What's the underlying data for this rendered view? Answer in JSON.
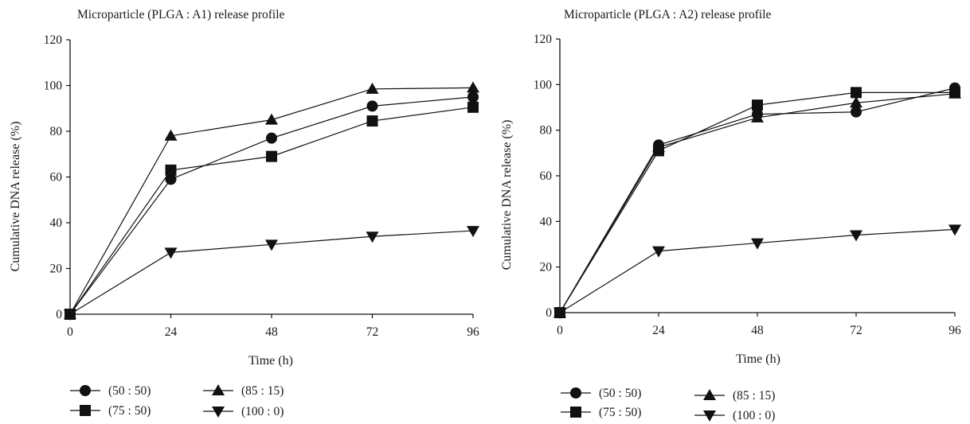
{
  "chart_data": [
    {
      "type": "line",
      "title": "Microparticle (PLGA : A1) release profile",
      "xlabel": "Time (h)",
      "ylabel": "Cumulative DNA release (%)",
      "x": [
        0,
        24,
        48,
        72,
        96
      ],
      "xticks": [
        "0",
        "24",
        "48",
        "72",
        "96"
      ],
      "yticks": [
        "0",
        "20",
        "40",
        "60",
        "80",
        "100",
        "120"
      ],
      "xlim": [
        0,
        96
      ],
      "ylim": [
        0,
        120
      ],
      "grid": false,
      "legend_position": "bottom",
      "series": [
        {
          "name": "(50 : 50)",
          "marker": "circle",
          "values": [
            0,
            59,
            77,
            91,
            95
          ]
        },
        {
          "name": "(75 : 50)",
          "marker": "square",
          "values": [
            0,
            63,
            69,
            84.5,
            90.5
          ]
        },
        {
          "name": "(85 : 15)",
          "marker": "triangle-up",
          "values": [
            0,
            78,
            85,
            98.5,
            99
          ]
        },
        {
          "name": "(100 : 0)",
          "marker": "triangle-down",
          "values": [
            0,
            27,
            30.5,
            34,
            36.5
          ]
        }
      ]
    },
    {
      "type": "line",
      "title": "Microparticle (PLGA : A2) release profile",
      "xlabel": "Time (h)",
      "ylabel": "Cumulative DNA release (%)",
      "x": [
        0,
        24,
        48,
        72,
        96
      ],
      "xticks": [
        "0",
        "24",
        "48",
        "72",
        "96"
      ],
      "yticks": [
        "0",
        "20",
        "40",
        "60",
        "80",
        "100",
        "120"
      ],
      "xlim": [
        0,
        96
      ],
      "ylim": [
        0,
        120
      ],
      "grid": false,
      "legend_position": "bottom",
      "series": [
        {
          "name": "(50 : 50)",
          "marker": "circle",
          "values": [
            0,
            73.5,
            87,
            88,
            98.5
          ]
        },
        {
          "name": "(75 : 50)",
          "marker": "square",
          "values": [
            0,
            71,
            91,
            96.5,
            96.5
          ]
        },
        {
          "name": "(85 : 15)",
          "marker": "triangle-up",
          "values": [
            0,
            72.5,
            85.5,
            92,
            96
          ]
        },
        {
          "name": "(100 : 0)",
          "marker": "triangle-down",
          "values": [
            0,
            27,
            30.5,
            34,
            36.5
          ]
        }
      ]
    }
  ]
}
